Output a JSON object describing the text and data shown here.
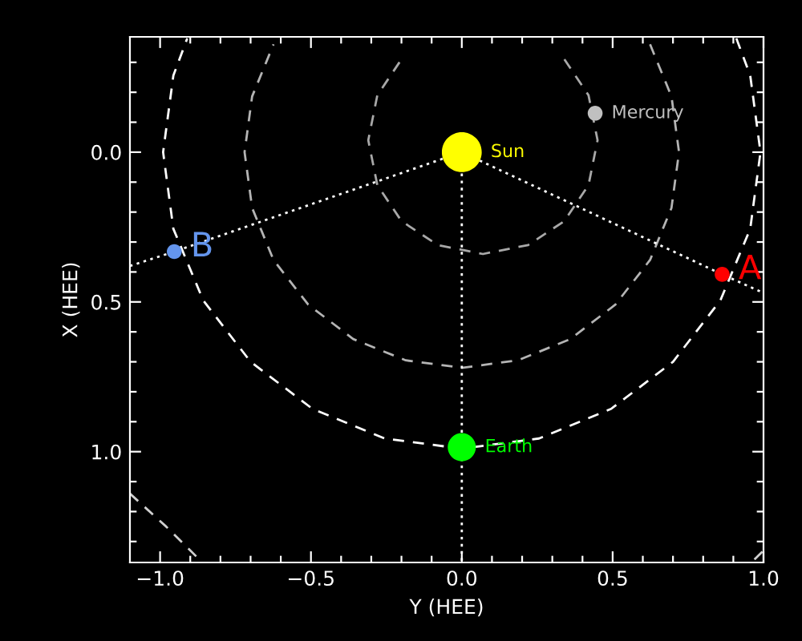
{
  "chart_data": {
    "type": "line",
    "xlabel": "Y (HEE)",
    "ylabel": "X (HEE)",
    "xlim": [
      -1.1,
      1.0
    ],
    "ylim": [
      1.37,
      -0.385
    ],
    "xticks": [
      {
        "value": -1.0,
        "label": "−1.0"
      },
      {
        "value": -0.9,
        "label": null
      },
      {
        "value": -0.8,
        "label": null
      },
      {
        "value": -0.7,
        "label": null
      },
      {
        "value": -0.6,
        "label": null
      },
      {
        "value": -0.5,
        "label": "−0.5"
      },
      {
        "value": -0.4,
        "label": null
      },
      {
        "value": -0.3,
        "label": null
      },
      {
        "value": -0.2,
        "label": null
      },
      {
        "value": -0.1,
        "label": null
      },
      {
        "value": 0.0,
        "label": "0.0"
      },
      {
        "value": 0.1,
        "label": null
      },
      {
        "value": 0.2,
        "label": null
      },
      {
        "value": 0.3,
        "label": null
      },
      {
        "value": 0.4,
        "label": null
      },
      {
        "value": 0.5,
        "label": "0.5"
      },
      {
        "value": 0.6,
        "label": null
      },
      {
        "value": 0.7,
        "label": null
      },
      {
        "value": 0.8,
        "label": null
      },
      {
        "value": 0.9,
        "label": null
      },
      {
        "value": 1.0,
        "label": "1.0"
      }
    ],
    "yticks": [
      {
        "value": -0.3,
        "label": null
      },
      {
        "value": -0.2,
        "label": null
      },
      {
        "value": -0.1,
        "label": null
      },
      {
        "value": 0.0,
        "label": "0.0"
      },
      {
        "value": 0.1,
        "label": null
      },
      {
        "value": 0.2,
        "label": null
      },
      {
        "value": 0.3,
        "label": null
      },
      {
        "value": 0.4,
        "label": null
      },
      {
        "value": 0.5,
        "label": "0.5"
      },
      {
        "value": 0.6,
        "label": null
      },
      {
        "value": 0.7,
        "label": null
      },
      {
        "value": 0.8,
        "label": null
      },
      {
        "value": 0.9,
        "label": null
      },
      {
        "value": 1.0,
        "label": "1.0"
      },
      {
        "value": 1.1,
        "label": null
      },
      {
        "value": 1.2,
        "label": null
      },
      {
        "value": 1.3,
        "label": null
      }
    ],
    "series": [
      {
        "type": "line",
        "line_style": "dashed",
        "color": "#a8a8a8",
        "x": [
          0.34,
          0.42,
          0.45,
          0.42,
          0.34,
          0.22,
          0.07,
          -0.08,
          -0.2,
          -0.28,
          -0.31,
          -0.28,
          -0.2
        ],
        "values": [
          -0.31,
          -0.19,
          -0.04,
          0.11,
          0.23,
          0.31,
          0.34,
          0.31,
          0.23,
          0.11,
          -0.04,
          -0.19,
          -0.31
        ]
      },
      {
        "type": "line",
        "line_style": "dashed",
        "color": "#b4b4b4",
        "x": [
          0.624,
          0.695,
          0.72,
          0.695,
          0.624,
          0.509,
          0.36,
          0.186,
          0,
          -0.186,
          -0.36,
          -0.509,
          -0.624,
          -0.695,
          -0.72,
          -0.695,
          -0.624
        ],
        "values": [
          -0.36,
          -0.186,
          0,
          0.186,
          0.36,
          0.509,
          0.624,
          0.695,
          0.72,
          0.695,
          0.624,
          0.509,
          0.36,
          0.186,
          0,
          -0.186,
          -0.36
        ]
      },
      {
        "type": "line",
        "line_style": "dashed",
        "color": "#ffffff",
        "x": [
          0.91,
          0.956,
          0.99,
          0.956,
          0.857,
          0.7,
          0.495,
          0.256,
          0,
          -0.256,
          -0.495,
          -0.7,
          -0.857,
          -0.956,
          -0.99,
          -0.956,
          -0.91
        ],
        "values": [
          -0.38,
          -0.256,
          0,
          0.256,
          0.495,
          0.7,
          0.857,
          0.956,
          0.99,
          0.956,
          0.857,
          0.7,
          0.495,
          0.256,
          0,
          -0.256,
          -0.38
        ]
      },
      {
        "type": "line",
        "line_style": "dashed",
        "color": "#d0d0d0",
        "x": [
          -1.1,
          -0.98,
          -0.86,
          0.0,
          0.97,
          1.0
        ],
        "values": [
          1.14,
          1.25,
          1.37,
          null,
          1.36,
          1.33
        ]
      },
      {
        "type": "line",
        "line_style": "dotted",
        "color": "#ffffff",
        "x": [
          -1.1,
          -0.953,
          0,
          0.863,
          1.0
        ],
        "values": [
          0.38,
          0.332,
          0,
          0.408,
          0.47
        ]
      },
      {
        "type": "line",
        "line_style": "dotted",
        "color": "#ffffff",
        "x": [
          0,
          0,
          0
        ],
        "values": [
          0,
          0.985,
          1.37
        ]
      },
      {
        "type": "bubble",
        "name": "Sun",
        "color": "#ffff00",
        "x": [
          0
        ],
        "values": [
          0
        ],
        "sizes": [
          1
        ]
      },
      {
        "type": "bubble",
        "name": "Mercury",
        "color": "#c0c0c0",
        "x": [
          0.442
        ],
        "values": [
          -0.13
        ],
        "sizes": [
          0.14
        ]
      },
      {
        "type": "bubble",
        "name": "Earth",
        "color": "#00ff00",
        "x": [
          0
        ],
        "values": [
          0.985
        ],
        "sizes": [
          0.5
        ]
      },
      {
        "type": "bubble",
        "name": "A",
        "color": "#ff0000",
        "x": [
          0.863
        ],
        "values": [
          0.408
        ],
        "sizes": [
          0.14
        ]
      },
      {
        "type": "bubble",
        "name": "B",
        "color": "#6495ed",
        "x": [
          -0.953
        ],
        "values": [
          0.332
        ],
        "sizes": [
          0.14
        ]
      }
    ]
  }
}
